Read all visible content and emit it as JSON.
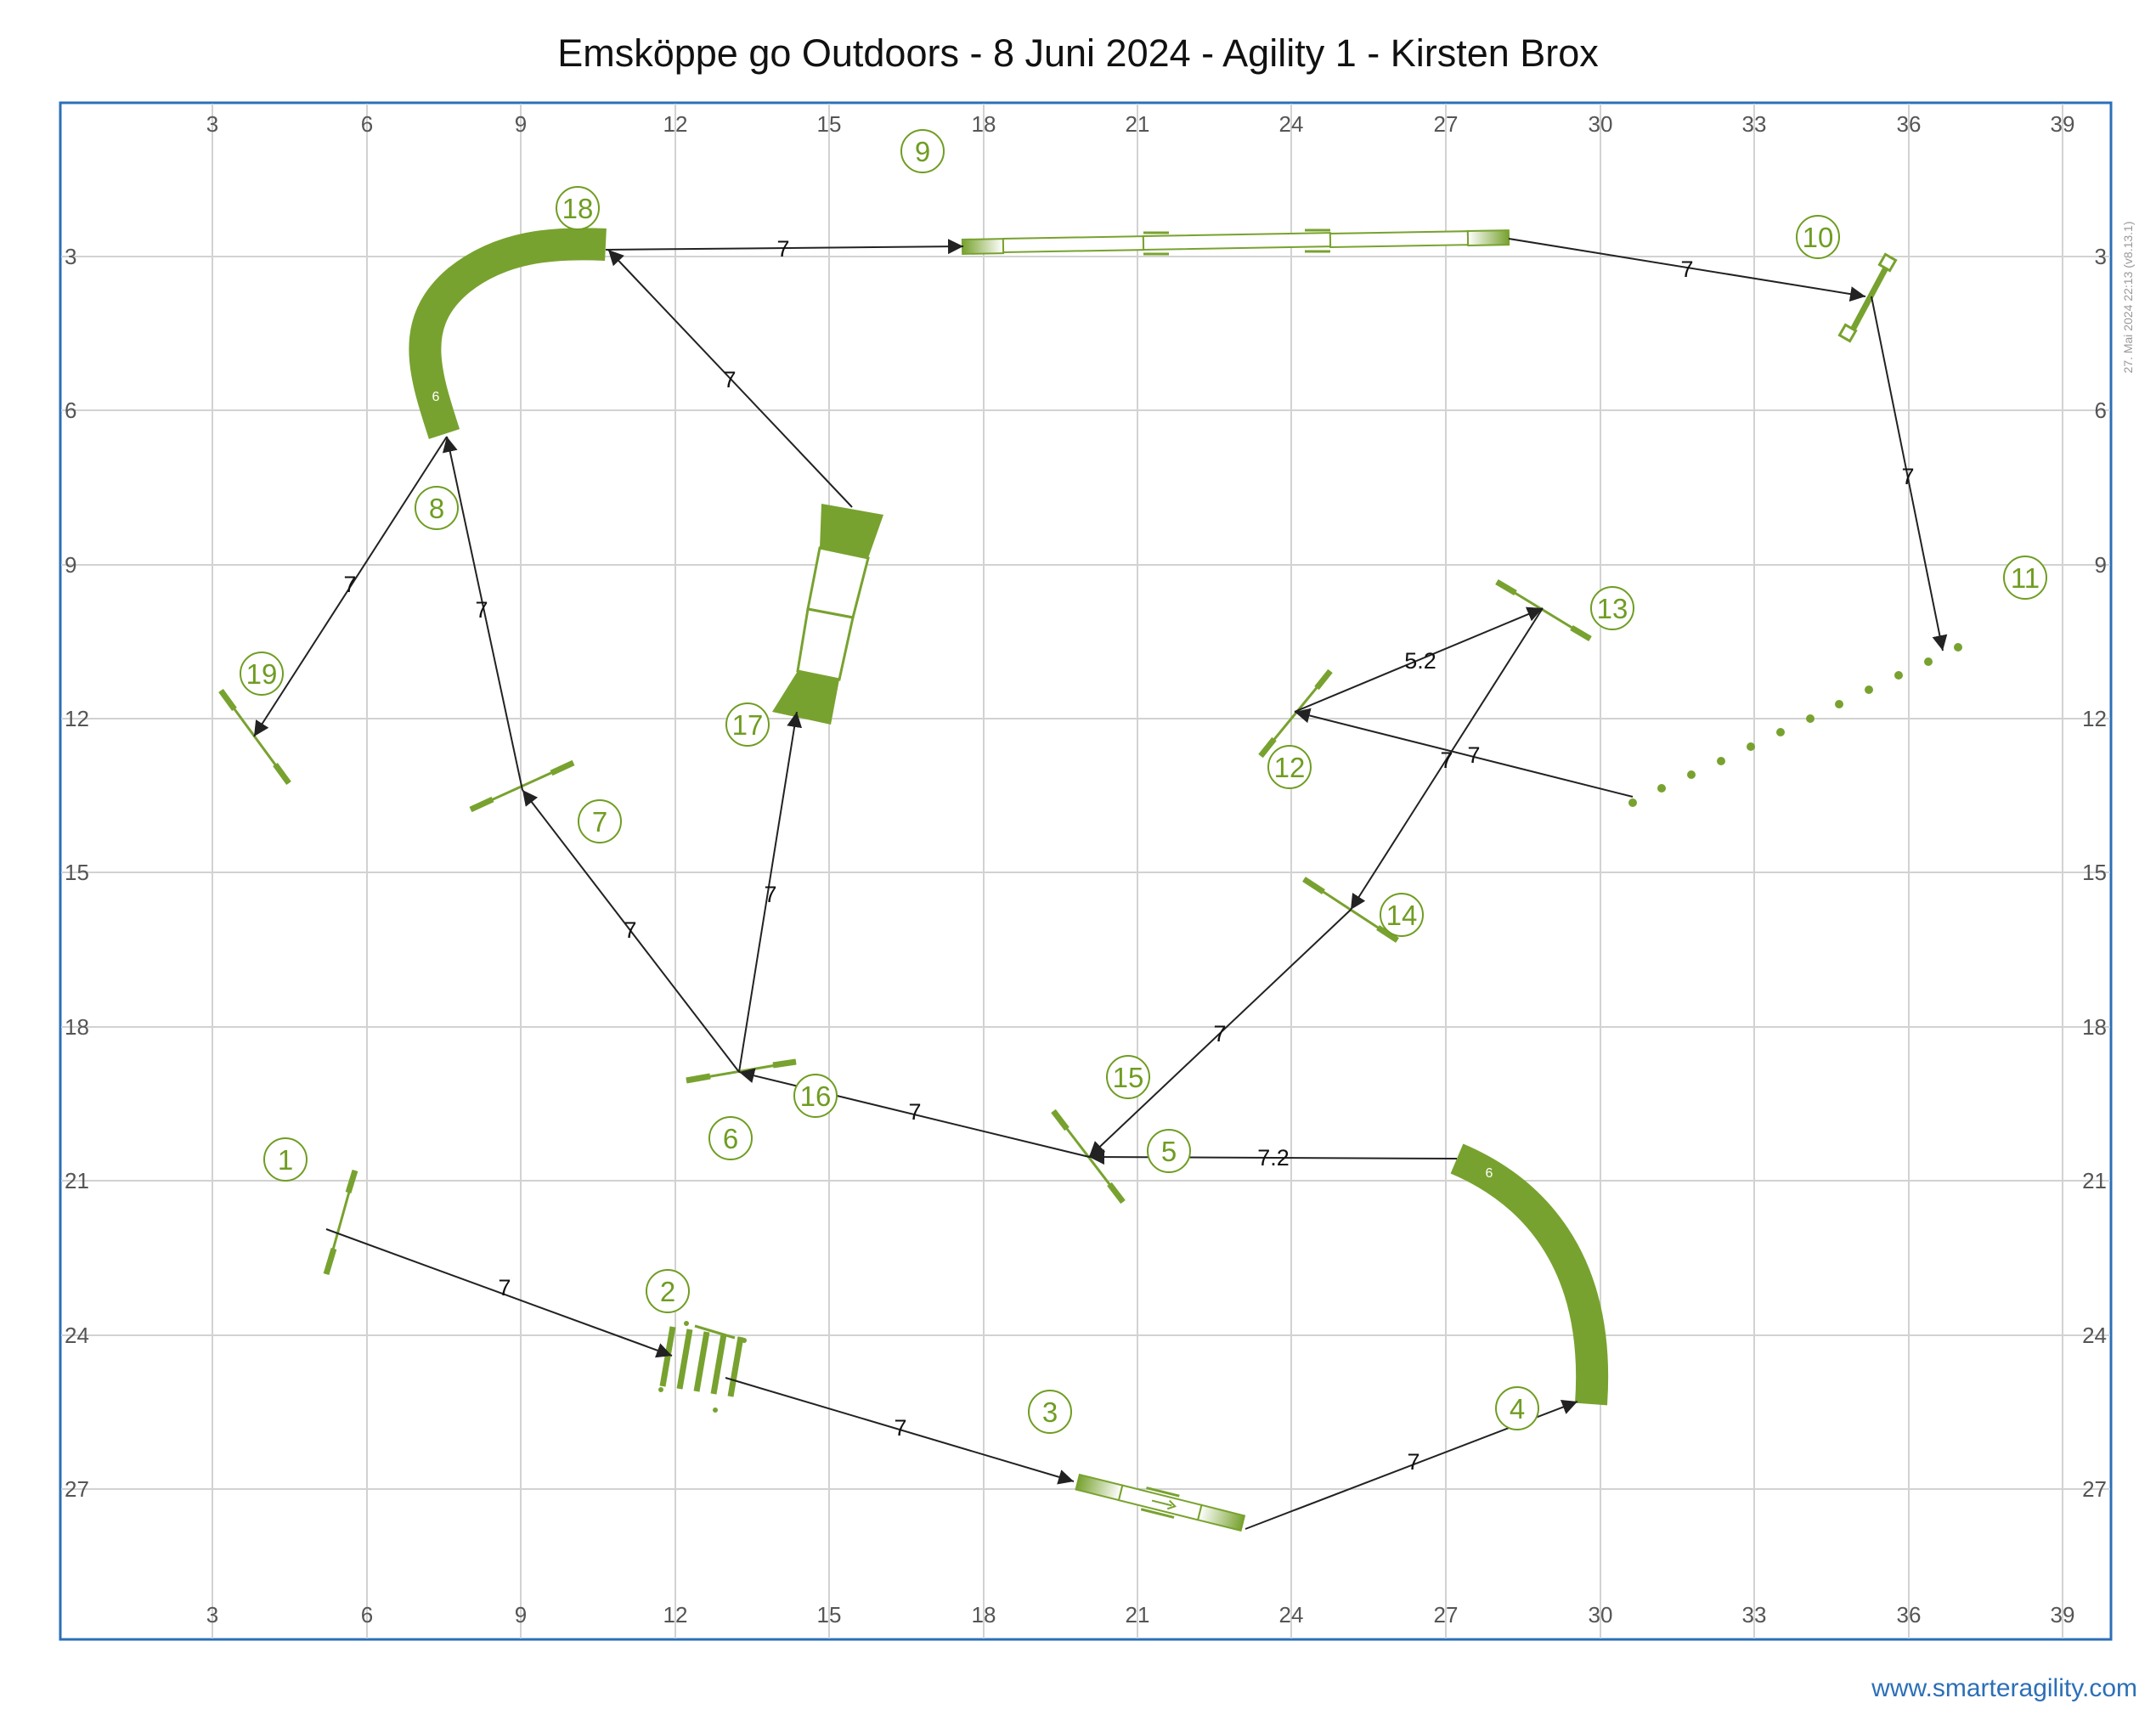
{
  "title": "Emsköppe go Outdoors - 8 Juni 2024 - Agility 1 - Kirsten Brox",
  "footer": "www.smarteragility.com",
  "side_note": "27. Mai 2024 22:13 (v8.13.1)",
  "colors": {
    "equipment": "#78a22f",
    "number": "#6f9d22",
    "frame": "#2c6fb8",
    "grid": "#d2d2d2",
    "path": "#222222"
  },
  "axes": {
    "x_ticks": [
      "3",
      "6",
      "9",
      "12",
      "15",
      "18",
      "21",
      "24",
      "27",
      "30",
      "33",
      "36",
      "39"
    ],
    "y_ticks": [
      "3",
      "6",
      "9",
      "12",
      "15",
      "18",
      "21",
      "24",
      "27"
    ]
  },
  "obstacle_numbers": [
    "1",
    "2",
    "3",
    "4",
    "5",
    "6",
    "7",
    "8",
    "9",
    "10",
    "11",
    "12",
    "13",
    "14",
    "15",
    "16",
    "17",
    "18",
    "19"
  ],
  "tunnel_lengths": {
    "tunnel_18": "6",
    "tunnel_4": "6"
  },
  "distances": {
    "d1": "7",
    "d2": "7",
    "d3": "7",
    "d4": "7.2",
    "d5": "7",
    "d6": "7",
    "d7": "7",
    "d8": "7",
    "d9": "7",
    "d10": "7",
    "d11": "7",
    "d12": "5.2",
    "d13": "7",
    "d14": "7",
    "d15": "7",
    "d16": "7",
    "d17": "7",
    "d18": "7"
  }
}
